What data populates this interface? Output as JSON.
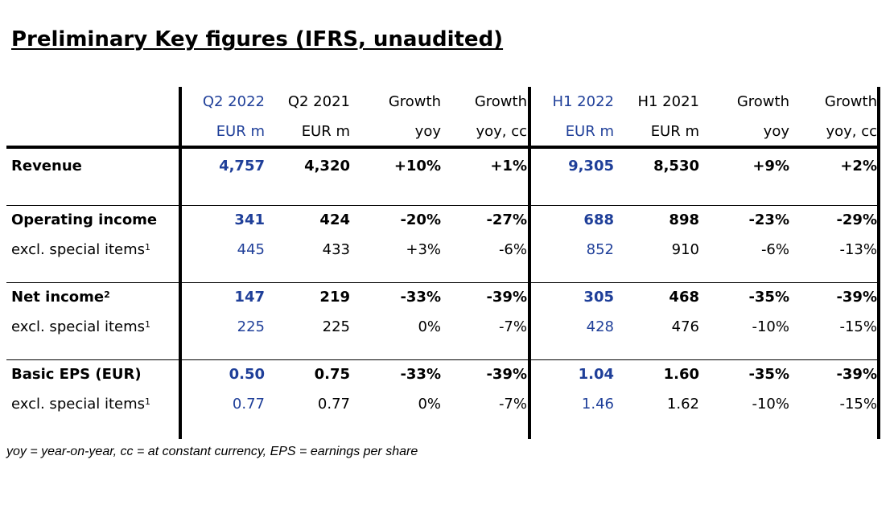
{
  "title": "Preliminary Key figures (IFRS, unaudited)",
  "columns": [
    {
      "line1": "Q2 2022",
      "line2": "EUR m"
    },
    {
      "line1": "Q2 2021",
      "line2": "EUR m"
    },
    {
      "line1": "Growth",
      "line2": "yoy"
    },
    {
      "line1": "Growth",
      "line2": "yoy, cc"
    },
    {
      "line1": "H1 2022",
      "line2": "EUR m"
    },
    {
      "line1": "H1 2021",
      "line2": "EUR m"
    },
    {
      "line1": "Growth",
      "line2": "yoy"
    },
    {
      "line1": "Growth",
      "line2": "yoy, cc"
    }
  ],
  "rows": [
    {
      "label": "Revenue",
      "sup": "",
      "bold": true,
      "values": [
        "4,757",
        "4,320",
        "+10%",
        "+1%",
        "9,305",
        "8,530",
        "+9%",
        "+2%"
      ]
    },
    {
      "label": "Operating income",
      "sup": "",
      "bold": true,
      "values": [
        "341",
        "424",
        "-20%",
        "-27%",
        "688",
        "898",
        "-23%",
        "-29%"
      ]
    },
    {
      "label": "excl. special items",
      "sup": "1",
      "bold": false,
      "values": [
        "445",
        "433",
        "+3%",
        "-6%",
        "852",
        "910",
        "-6%",
        "-13%"
      ]
    },
    {
      "label": "Net income",
      "sup": "2",
      "bold": true,
      "values": [
        "147",
        "219",
        "-33%",
        "-39%",
        "305",
        "468",
        "-35%",
        "-39%"
      ]
    },
    {
      "label": "excl. special items",
      "sup": "1",
      "bold": false,
      "values": [
        "225",
        "225",
        "0%",
        "-7%",
        "428",
        "476",
        "-10%",
        "-15%"
      ]
    },
    {
      "label": "Basic EPS (EUR)",
      "sup": "",
      "bold": true,
      "values": [
        "0.50",
        "0.75",
        "-33%",
        "-39%",
        "1.04",
        "1.60",
        "-35%",
        "-39%"
      ]
    },
    {
      "label": "excl. special items",
      "sup": "1",
      "bold": false,
      "values": [
        "0.77",
        "0.77",
        "0%",
        "-7%",
        "1.46",
        "1.62",
        "-10%",
        "-15%"
      ]
    }
  ],
  "footnote": "yoy = year-on-year, cc = at constant currency, EPS = earnings per share",
  "colors": {
    "highlight": "#1f3f99",
    "text": "#000000"
  }
}
